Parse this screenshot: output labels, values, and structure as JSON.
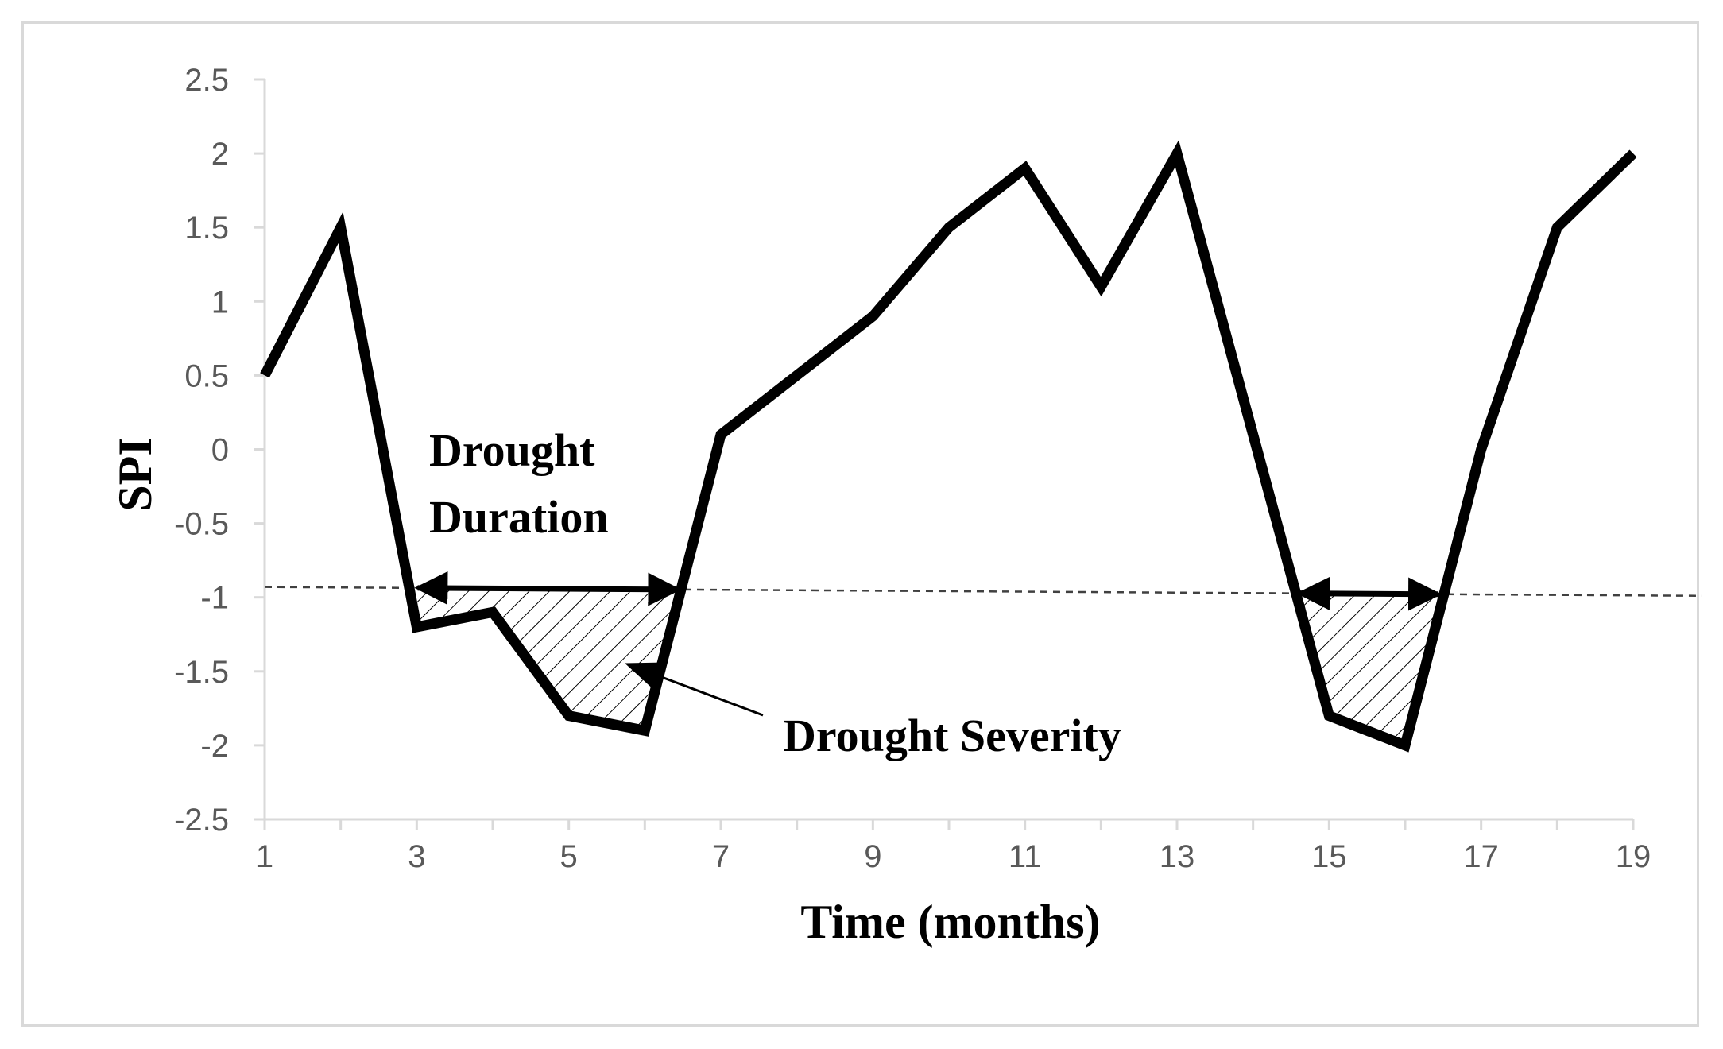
{
  "chart_data": {
    "type": "line",
    "xlabel": "Time (months)",
    "ylabel": "SPI",
    "xlim": [
      1,
      19
    ],
    "ylim": [
      -2.5,
      2.5
    ],
    "x_ticks": [
      1,
      3,
      5,
      7,
      9,
      11,
      13,
      15,
      17,
      19
    ],
    "x_tick_labels": [
      "1",
      "3",
      "5",
      "7",
      "9",
      "11",
      "13",
      "15",
      "17",
      "19"
    ],
    "y_ticks": [
      2.5,
      2,
      1.5,
      1,
      0.5,
      0,
      -0.5,
      -1,
      -1.5,
      -2,
      -2.5
    ],
    "y_tick_labels": [
      "2.5",
      "2",
      "1.5",
      "1",
      "0.5",
      "0",
      "-0.5",
      "-1",
      "-1.5",
      "-2",
      "-2.5"
    ],
    "grid": false,
    "series": [
      {
        "x": [
          1,
          2,
          3,
          4,
          5,
          6,
          7,
          8,
          9,
          10,
          11,
          12,
          13,
          14,
          15,
          16,
          17,
          18,
          19
        ],
        "values": [
          0.5,
          1.5,
          -1.2,
          -1.1,
          -1.8,
          -1.9,
          0.1,
          0.5,
          0.9,
          1.5,
          1.9,
          1.1,
          2.0,
          0.1,
          -1.8,
          -2.0,
          0.0,
          1.5,
          2.0
        ]
      }
    ],
    "threshold_line": {
      "x": [
        1,
        20
      ],
      "values": [
        -0.93,
        -0.99
      ]
    },
    "drought_events": [
      {
        "start": 2.95,
        "end": 6.5
      },
      {
        "start": 14.55,
        "end": 16.5
      }
    ],
    "annotations": {
      "duration_line1": "Drought",
      "duration_line2": "Duration",
      "severity": "Drought Severity"
    },
    "colors": {
      "line": "#000000",
      "axis": "#d9d9d9",
      "tick_text": "#595959",
      "threshold": "#404040"
    }
  }
}
